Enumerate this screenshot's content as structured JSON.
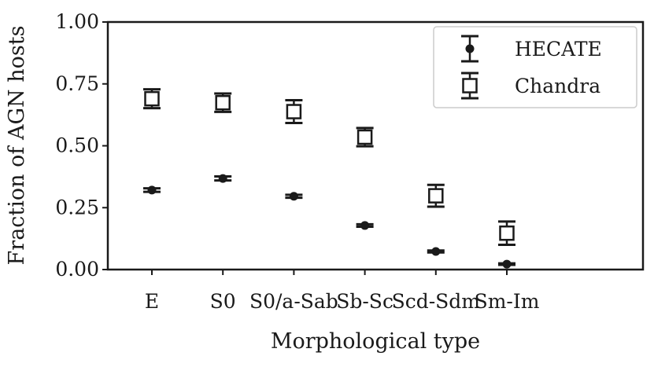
{
  "chart_data": {
    "type": "scatter",
    "xlabel": "Morphological type",
    "ylabel": "Fraction of AGN hosts",
    "categories": [
      "E",
      "S0",
      "S0/a-Sab",
      "Sb-Sc",
      "Scd-Sdm",
      "Sm-Im"
    ],
    "ylim": [
      0.0,
      1.0
    ],
    "yticks": [
      "0.00",
      "0.25",
      "0.50",
      "0.75",
      "1.00"
    ],
    "grid": false,
    "legend_position": "top-right",
    "series": [
      {
        "name": "HECATE",
        "marker": "filled-circle",
        "values": [
          0.321,
          0.368,
          0.296,
          0.178,
          0.073,
          0.022
        ],
        "err": [
          0.007,
          0.008,
          0.006,
          0.005,
          0.004,
          0.003
        ]
      },
      {
        "name": "Chandra",
        "marker": "open-square",
        "values": [
          0.69,
          0.674,
          0.638,
          0.535,
          0.298,
          0.147
        ],
        "err": [
          0.038,
          0.037,
          0.046,
          0.037,
          0.044,
          0.047
        ]
      }
    ]
  }
}
